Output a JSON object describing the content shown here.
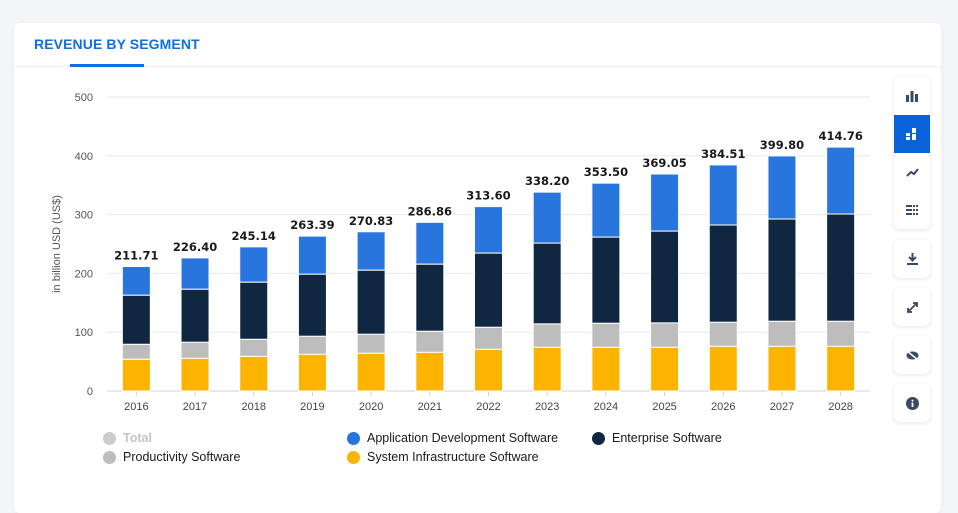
{
  "tab": {
    "label": "REVENUE BY SEGMENT"
  },
  "sidebar": {
    "buttons": [
      {
        "icon": "bar-chart-icon",
        "active": false
      },
      {
        "icon": "stacked-bar-icon",
        "active": true
      },
      {
        "icon": "line-chart-icon",
        "active": false
      },
      {
        "icon": "table-icon",
        "active": false
      },
      {
        "icon": "download-icon",
        "active": false
      },
      {
        "icon": "expand-icon",
        "active": false
      },
      {
        "icon": "hide-icon",
        "active": false
      },
      {
        "icon": "info-icon",
        "active": false
      }
    ]
  },
  "colors": {
    "accent": "#0f6fdc",
    "active_button": "#0a62d8"
  },
  "chart_data": {
    "type": "bar",
    "stacked": true,
    "ylabel": "in billion USD (US$)",
    "ylim": [
      0,
      500
    ],
    "yticks": [
      0,
      100,
      200,
      300,
      400,
      500
    ],
    "grid": true,
    "legend_position": "bottom",
    "categories": [
      "2016",
      "2017",
      "2018",
      "2019",
      "2020",
      "2021",
      "2022",
      "2023",
      "2024",
      "2025",
      "2026",
      "2027",
      "2028"
    ],
    "totals": [
      "211.71",
      "226.40",
      "245.14",
      "263.39",
      "270.83",
      "286.86",
      "313.60",
      "338.20",
      "353.50",
      "369.05",
      "384.51",
      "399.80",
      "414.76"
    ],
    "series": [
      {
        "name": "System Infrastructure Software",
        "color": "#fcb400",
        "values": [
          54.0,
          55.7,
          59.0,
          62.5,
          64.2,
          65.9,
          71.0,
          74.4,
          74.4,
          74.4,
          76.1,
          76.1,
          76.1
        ]
      },
      {
        "name": "Productivity Software",
        "color": "#bdbdbd",
        "values": [
          25.5,
          27.3,
          29.0,
          30.7,
          32.4,
          35.8,
          37.5,
          39.8,
          40.9,
          41.5,
          40.9,
          42.6,
          42.6
        ]
      },
      {
        "name": "Enterprise Software",
        "color": "#0f2741",
        "values": [
          83.5,
          90.2,
          97.2,
          105.6,
          109.0,
          114.1,
          126.1,
          137.4,
          146.5,
          156.1,
          165.3,
          173.8,
          182.3
        ]
      },
      {
        "name": "Application Development Software",
        "color": "#2876dd",
        "values": [
          48.71,
          53.2,
          59.94,
          64.59,
          65.23,
          71.06,
          79.0,
          86.6,
          91.7,
          97.05,
          102.21,
          107.3,
          113.76
        ]
      }
    ],
    "legend": [
      {
        "name": "Total",
        "color": "#cccccc",
        "disabled": true
      },
      {
        "name": "Application Development Software",
        "color": "#2876dd"
      },
      {
        "name": "Enterprise Software",
        "color": "#0f2741"
      },
      {
        "name": "Productivity Software",
        "color": "#bdbdbd"
      },
      {
        "name": "System Infrastructure Software",
        "color": "#fcb400"
      }
    ]
  }
}
